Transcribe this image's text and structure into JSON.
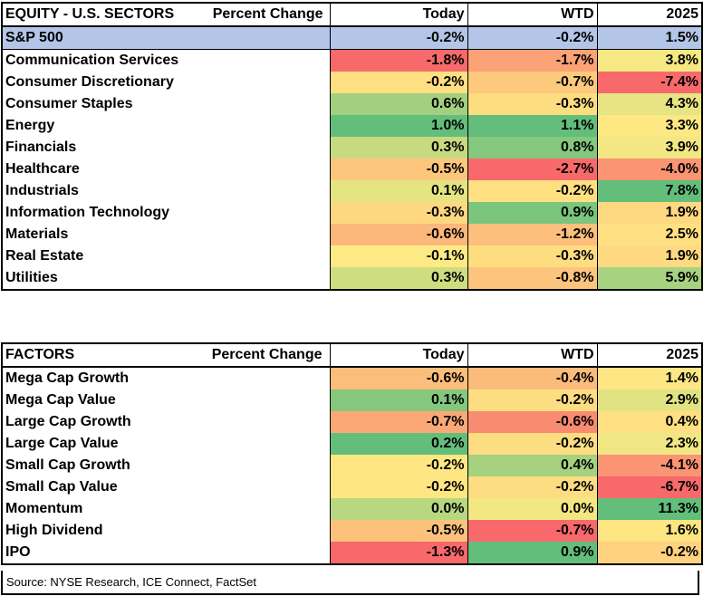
{
  "sectors": {
    "title": "EQUITY - U.S. SECTORS",
    "subtitle": "Percent Change",
    "columns": [
      "Today",
      "WTD",
      "2025"
    ],
    "sp500": {
      "label": "S&P 500",
      "values": [
        "-0.2%",
        "-0.2%",
        "1.5%"
      ]
    },
    "rows": [
      {
        "label": "Communication Services",
        "values": [
          "-1.8%",
          "-1.7%",
          "3.8%"
        ],
        "colors": [
          "#f8696b",
          "#fba276",
          "#f6e883"
        ]
      },
      {
        "label": "Consumer Discretionary",
        "values": [
          "-0.2%",
          "-0.7%",
          "-7.4%"
        ],
        "colors": [
          "#fedf81",
          "#fdc97d",
          "#f8696b"
        ]
      },
      {
        "label": "Consumer Staples",
        "values": [
          "0.6%",
          "-0.3%",
          "4.3%"
        ],
        "colors": [
          "#a2d07f",
          "#fedd81",
          "#e6e483"
        ]
      },
      {
        "label": "Energy",
        "values": [
          "1.0%",
          "1.1%",
          "3.3%"
        ],
        "colors": [
          "#63be7b",
          "#63be7b",
          "#fde883"
        ]
      },
      {
        "label": "Financials",
        "values": [
          "0.3%",
          "0.8%",
          "3.9%"
        ],
        "colors": [
          "#c8da81",
          "#84c77d",
          "#f2e783"
        ]
      },
      {
        "label": "Healthcare",
        "values": [
          "-0.5%",
          "-2.7%",
          "-4.0%"
        ],
        "colors": [
          "#fdc67d",
          "#f8696b",
          "#fa9473"
        ]
      },
      {
        "label": "Industrials",
        "values": [
          "0.1%",
          "-0.2%",
          "7.8%"
        ],
        "colors": [
          "#e5e483",
          "#fee082",
          "#63be7b"
        ]
      },
      {
        "label": "Information Technology",
        "values": [
          "-0.3%",
          "0.9%",
          "1.9%"
        ],
        "colors": [
          "#fed881",
          "#7bc57d",
          "#fed981"
        ]
      },
      {
        "label": "Materials",
        "values": [
          "-0.6%",
          "-1.2%",
          "2.5%"
        ],
        "colors": [
          "#fcb77a",
          "#fdbf7c",
          "#fee082"
        ]
      },
      {
        "label": "Real Estate",
        "values": [
          "-0.1%",
          "-0.3%",
          "1.9%"
        ],
        "colors": [
          "#feea84",
          "#fedd81",
          "#fed981"
        ]
      },
      {
        "label": "Utilities",
        "values": [
          "0.3%",
          "-0.8%",
          "5.9%"
        ],
        "colors": [
          "#cfdd81",
          "#fcc47d",
          "#a7d27f"
        ]
      }
    ]
  },
  "factors": {
    "title": "FACTORS",
    "subtitle": "Percent Change",
    "columns": [
      "Today",
      "WTD",
      "2025"
    ],
    "rows": [
      {
        "label": "Mega Cap Growth",
        "values": [
          "-0.6%",
          "-0.4%",
          "1.4%"
        ],
        "colors": [
          "#fcbe7b",
          "#fbbb7a",
          "#fde683"
        ]
      },
      {
        "label": "Mega Cap Value",
        "values": [
          "0.1%",
          "-0.2%",
          "2.9%"
        ],
        "colors": [
          "#84c77d",
          "#fddd81",
          "#e1e383"
        ]
      },
      {
        "label": "Large Cap Growth",
        "values": [
          "-0.7%",
          "-0.6%",
          "0.4%"
        ],
        "colors": [
          "#fba877",
          "#f98b71",
          "#fee082"
        ]
      },
      {
        "label": "Large Cap Value",
        "values": [
          "0.2%",
          "-0.2%",
          "2.3%"
        ],
        "colors": [
          "#63be7b",
          "#fddd81",
          "#f0e683"
        ]
      },
      {
        "label": "Small Cap Growth",
        "values": [
          "-0.2%",
          "0.4%",
          "-4.1%"
        ],
        "colors": [
          "#fee782",
          "#a6d17f",
          "#fa9473"
        ]
      },
      {
        "label": "Small Cap Value",
        "values": [
          "-0.2%",
          "-0.2%",
          "-6.7%"
        ],
        "colors": [
          "#fee782",
          "#fddd81",
          "#f8696b"
        ]
      },
      {
        "label": "Momentum",
        "values": [
          "0.0%",
          "0.0%",
          "11.3%"
        ],
        "colors": [
          "#b7d780",
          "#f3e783",
          "#63be7b"
        ]
      },
      {
        "label": "High Dividend",
        "values": [
          "-0.5%",
          "-0.7%",
          "1.6%"
        ],
        "colors": [
          "#fcc27c",
          "#f8696b",
          "#fde582"
        ]
      },
      {
        "label": "IPO",
        "values": [
          "-1.3%",
          "0.9%",
          "-0.2%"
        ],
        "colors": [
          "#f8696b",
          "#63be7b",
          "#fed280"
        ]
      }
    ]
  },
  "source": "Source: NYSE Research, ICE Connect, FactSet"
}
